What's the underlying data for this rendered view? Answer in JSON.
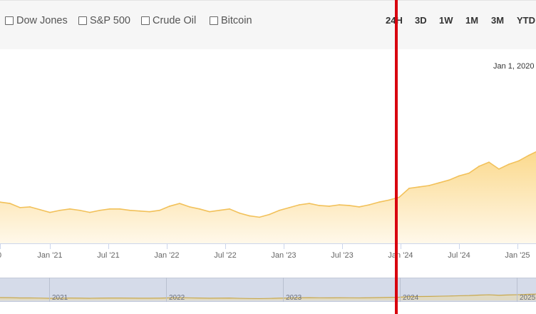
{
  "compare": {
    "items": [
      {
        "label": "Dow Jones",
        "checked": false
      },
      {
        "label": "S&P 500",
        "checked": false
      },
      {
        "label": "Crude Oil",
        "checked": false
      },
      {
        "label": "Bitcoin",
        "checked": false
      }
    ]
  },
  "ranges": [
    "24H",
    "3D",
    "1W",
    "1M",
    "3M",
    "YTD"
  ],
  "tooltip": {
    "date": "Jan 1, 2020"
  },
  "colors": {
    "line": "#f2c15a",
    "area_top": "#fbd98c",
    "area_bottom": "#fff8ea",
    "navigator_bg": "#d5dbe9",
    "marker": "#d8000e"
  },
  "chart_data": {
    "type": "area",
    "x_ticks": [
      "Jan '21",
      "Jul '21",
      "Jan '22",
      "Jul '22",
      "Jan '23",
      "Jul '23",
      "Jan '24",
      "Jul '24",
      "Jan '25"
    ],
    "navigator_ticks": [
      "2021",
      "2022",
      "2023",
      "2024",
      "2025"
    ],
    "series": [
      {
        "x": [
          "Oct '20",
          "Nov '20",
          "Dec '20",
          "Jan '21",
          "Feb '21",
          "Mar '21",
          "Apr '21",
          "May '21",
          "Jun '21",
          "Jul '21",
          "Aug '21",
          "Sep '21",
          "Oct '21",
          "Nov '21",
          "Dec '21",
          "Jan '22",
          "Feb '22",
          "Mar '22",
          "Apr '22",
          "May '22",
          "Jun '22",
          "Jul '22",
          "Aug '22",
          "Sep '22",
          "Oct '22",
          "Nov '22",
          "Dec '22",
          "Jan '23",
          "Feb '23",
          "Mar '23",
          "Apr '23",
          "May '23",
          "Jun '23",
          "Jul '23",
          "Aug '23",
          "Sep '23",
          "Oct '23",
          "Nov '23",
          "Dec '23",
          "Jan '24",
          "Feb '24",
          "Mar '24",
          "Apr '24",
          "May '24",
          "Jun '24",
          "Jul '24",
          "Aug '24",
          "Sep '24",
          "Oct '24",
          "Nov '24",
          "Dec '24",
          "Jan '25",
          "Feb '25",
          "Mar '25",
          "Apr '25"
        ],
        "values": [
          60,
          58,
          52,
          53,
          49,
          45,
          48,
          50,
          48,
          45,
          48,
          50,
          50,
          48,
          47,
          46,
          48,
          54,
          58,
          53,
          50,
          46,
          48,
          50,
          44,
          40,
          38,
          42,
          48,
          52,
          56,
          58,
          55,
          54,
          56,
          55,
          53,
          56,
          60,
          63,
          67,
          80,
          82,
          84,
          88,
          92,
          98,
          102,
          112,
          118,
          108,
          115,
          120,
          128,
          135
        ]
      }
    ]
  }
}
